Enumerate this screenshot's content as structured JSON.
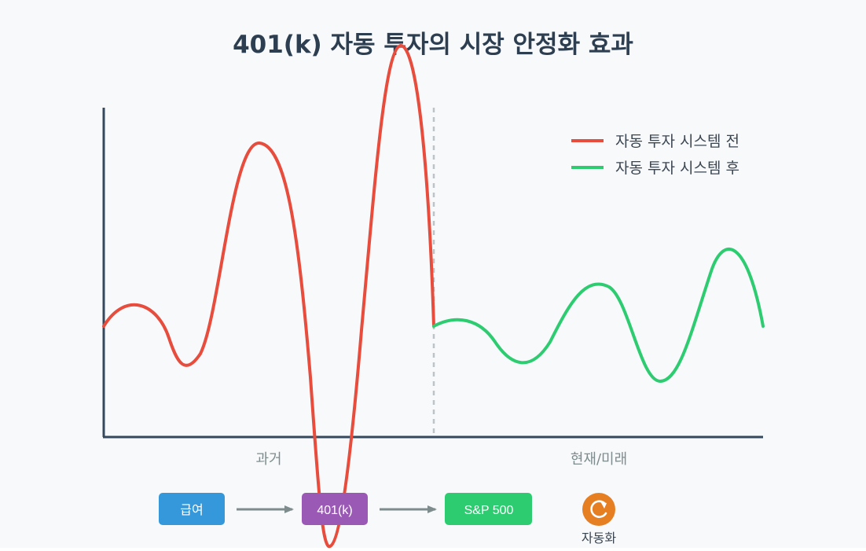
{
  "title": "401(k) 자동 투자의 시장 안정화 효과",
  "legend": {
    "before": {
      "label": "자동 투자 시스템 전",
      "color": "#e74c3c"
    },
    "after": {
      "label": "자동 투자 시스템 후",
      "color": "#2ecc71"
    }
  },
  "periods": {
    "past": "과거",
    "future": "현재/미래"
  },
  "flow": {
    "steps": [
      {
        "label": "급여",
        "color": "#3498db"
      },
      {
        "label": "401(k)",
        "color": "#9b59b6"
      },
      {
        "label": "S&P 500",
        "color": "#2ecc71"
      }
    ],
    "arrow_color": "#7f8c8d",
    "automation": {
      "label": "자동화",
      "icon": "refresh-icon",
      "color": "#e67e22"
    }
  },
  "colors": {
    "axis": "#34495e",
    "divider": "#bdc3c7",
    "background": "#f7f9fb",
    "title": "#2c3e50"
  }
}
